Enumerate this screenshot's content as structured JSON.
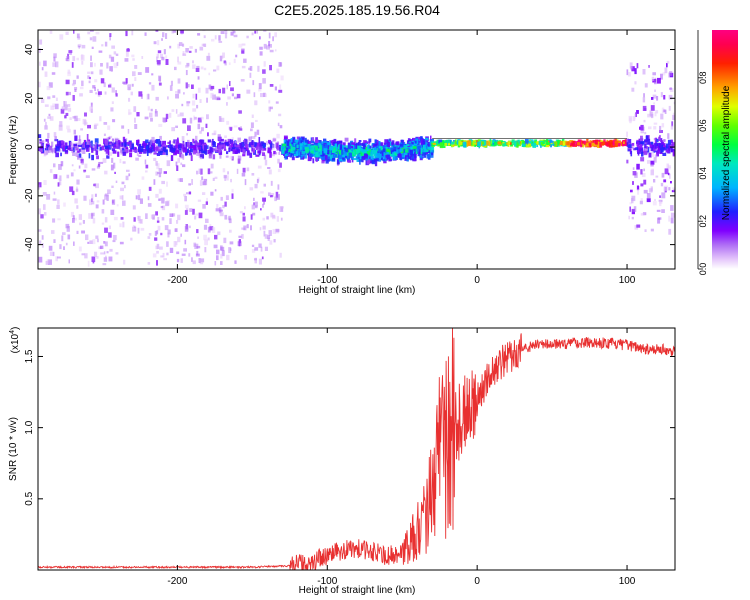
{
  "title": "C2E5.2025.185.19.56.R04",
  "chart_data": [
    {
      "type": "heatmap",
      "xlabel": "Height of straight line (km)",
      "ylabel": "Frequency (Hz)",
      "xlim": [
        -293,
        132
      ],
      "ylim": [
        -50,
        48
      ],
      "xticks": [
        -200,
        -100,
        0,
        100
      ],
      "yticks": [
        -40,
        -20,
        0,
        20,
        40
      ],
      "colorbar": {
        "label": "Normalized spectral amplitude",
        "range": [
          0,
          1
        ],
        "ticks": [
          "0.0",
          "0.2",
          "0.4",
          "0.6",
          "0.8"
        ],
        "colormap": [
          "#ffffff",
          "#d8b4f8",
          "#8000ff",
          "#2020ff",
          "#00c0ff",
          "#00ff80",
          "#40ff00",
          "#ffff00",
          "#ff8000",
          "#ff0000",
          "#ff0080"
        ]
      },
      "description": [
        {
          "x_range": [
            -293,
            -130
          ],
          "pattern": "broad diffuse noise",
          "freq_center": 0,
          "freq_spread": 48,
          "peak_amplitude": 0.15
        },
        {
          "x_range": [
            -130,
            -30
          ],
          "pattern": "band with wiggle",
          "freq_center": 0,
          "freq_spread": 8,
          "peak_amplitude": 0.55
        },
        {
          "x_range": [
            -30,
            100
          ],
          "pattern": "narrow carrier line",
          "freq_center": 1.5,
          "freq_spread": 2,
          "peak_amplitude": 0.9
        },
        {
          "x_range": [
            100,
            132
          ],
          "pattern": "broad diffuse noise",
          "freq_center": 0,
          "freq_spread": 35,
          "peak_amplitude": 0.2
        }
      ]
    },
    {
      "type": "line",
      "xlabel": "Height of straight line (km)",
      "ylabel": "SNR (10 * v/v)",
      "scale_label": "(x10",
      "scale_exponent": "4",
      "xlim": [
        -293,
        132
      ],
      "ylim": [
        0,
        1.7
      ],
      "xticks": [
        -200,
        -100,
        0,
        100
      ],
      "yticks": [
        0.5,
        1.0,
        1.5
      ],
      "ytick_labels": [
        "0.5",
        "1.0",
        "1.5"
      ],
      "color": "#e83030",
      "series": [
        {
          "x": [
            -293,
            -250,
            -200,
            -150,
            -125,
            -110,
            -100,
            -90,
            -80,
            -70,
            -60,
            -50,
            -40,
            -35,
            -30,
            -25,
            -20,
            -15,
            -10,
            -5,
            0,
            5,
            10,
            15,
            20,
            25,
            30,
            40,
            50,
            60,
            70,
            80,
            90,
            100,
            110,
            120,
            132
          ],
          "values": [
            0.02,
            0.02,
            0.02,
            0.02,
            0.03,
            0.06,
            0.1,
            0.14,
            0.15,
            0.13,
            0.1,
            0.12,
            0.25,
            0.4,
            0.55,
            0.75,
            0.88,
            0.98,
            1.08,
            1.15,
            1.22,
            1.3,
            1.4,
            1.45,
            1.48,
            1.52,
            1.56,
            1.58,
            1.59,
            1.59,
            1.6,
            1.6,
            1.59,
            1.58,
            1.56,
            1.55,
            1.54
          ]
        }
      ]
    }
  ]
}
